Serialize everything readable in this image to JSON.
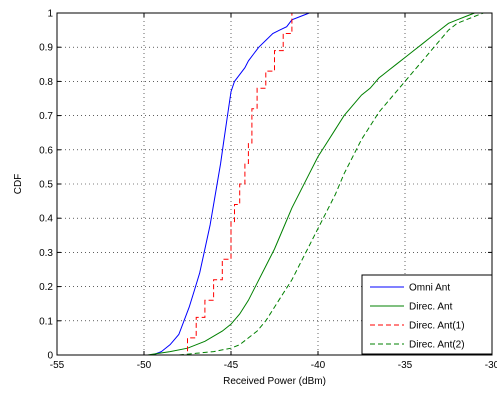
{
  "chart_data": {
    "type": "line",
    "title": "",
    "xlabel": "Received Power (dBm)",
    "ylabel": "CDF",
    "xlim": [
      -55,
      -30
    ],
    "ylim": [
      0,
      1
    ],
    "x_ticks": [
      -55,
      -50,
      -45,
      -40,
      -35,
      -30
    ],
    "y_ticks": [
      0,
      0.1,
      0.2,
      0.3,
      0.4,
      0.5,
      0.6,
      0.7,
      0.8,
      0.9,
      1
    ],
    "x_tick_labels": [
      "-55",
      "-50",
      "-45",
      "-40",
      "-35",
      "-30"
    ],
    "y_tick_labels": [
      "0",
      "0.1",
      "0.2",
      "0.3",
      "0.4",
      "0.5",
      "0.6",
      "0.7",
      "0.8",
      "0.9",
      "1"
    ],
    "grid": true,
    "legend_position": "bottom-right",
    "series": [
      {
        "name": "Omni Ant",
        "color": "#0000ff",
        "style": "solid",
        "x": [
          -49.5,
          -49.0,
          -48.5,
          -48.0,
          -47.7,
          -47.4,
          -47.1,
          -46.8,
          -46.5,
          -46.2,
          -46.0,
          -45.8,
          -45.6,
          -45.4,
          -45.2,
          -45.0,
          -44.8,
          -44.5,
          -44.2,
          -44.0,
          -43.7,
          -43.4,
          -43.0,
          -42.6,
          -42.2,
          -41.8,
          -41.5,
          -41.0,
          -40.5,
          -40.0
        ],
        "y": [
          0.0,
          0.01,
          0.03,
          0.06,
          0.1,
          0.14,
          0.19,
          0.24,
          0.31,
          0.38,
          0.44,
          0.5,
          0.56,
          0.63,
          0.7,
          0.77,
          0.8,
          0.82,
          0.84,
          0.86,
          0.88,
          0.9,
          0.92,
          0.94,
          0.95,
          0.96,
          0.98,
          0.99,
          1.0,
          1.0
        ]
      },
      {
        "name": "Direc. Ant",
        "color": "#008000",
        "style": "solid",
        "x": [
          -49.8,
          -48.5,
          -47.5,
          -46.5,
          -45.5,
          -45.0,
          -44.5,
          -44.0,
          -43.5,
          -43.0,
          -42.5,
          -42.0,
          -41.5,
          -41.0,
          -40.5,
          -40.0,
          -39.5,
          -39.0,
          -38.5,
          -38.0,
          -37.5,
          -37.0,
          -36.5,
          -36.0,
          -35.5,
          -35.0,
          -34.5,
          -34.0,
          -33.5,
          -33.0,
          -32.5,
          -32.0,
          -31.5,
          -31.0
        ],
        "y": [
          0.0,
          0.01,
          0.02,
          0.04,
          0.07,
          0.09,
          0.12,
          0.16,
          0.21,
          0.26,
          0.31,
          0.37,
          0.43,
          0.48,
          0.53,
          0.58,
          0.62,
          0.66,
          0.7,
          0.73,
          0.76,
          0.78,
          0.81,
          0.83,
          0.85,
          0.87,
          0.89,
          0.91,
          0.93,
          0.95,
          0.97,
          0.98,
          0.99,
          1.0
        ]
      },
      {
        "name": "Direc. Ant(1)",
        "color": "#ff0000",
        "style": "dashed",
        "x": [
          -48.2,
          -47.5,
          -47.5,
          -47.0,
          -47.0,
          -46.5,
          -46.5,
          -46.0,
          -46.0,
          -45.5,
          -45.5,
          -45.0,
          -45.0,
          -44.8,
          -44.8,
          -44.5,
          -44.5,
          -44.2,
          -44.2,
          -44.0,
          -44.0,
          -43.8,
          -43.8,
          -43.5,
          -43.5,
          -43.0,
          -43.0,
          -42.5,
          -42.5,
          -42.0,
          -42.0,
          -41.5,
          -41.5,
          -41.0
        ],
        "y": [
          0.0,
          0.0,
          0.05,
          0.05,
          0.11,
          0.11,
          0.16,
          0.16,
          0.22,
          0.22,
          0.28,
          0.28,
          0.39,
          0.39,
          0.44,
          0.44,
          0.5,
          0.5,
          0.56,
          0.56,
          0.62,
          0.62,
          0.72,
          0.72,
          0.78,
          0.78,
          0.83,
          0.83,
          0.89,
          0.89,
          0.94,
          0.94,
          1.0,
          1.0
        ]
      },
      {
        "name": "Direc. Ant(2)",
        "color": "#008000",
        "style": "dashed",
        "x": [
          -48.0,
          -47.0,
          -46.0,
          -45.0,
          -44.5,
          -44.0,
          -43.5,
          -43.0,
          -42.5,
          -42.0,
          -41.5,
          -41.0,
          -40.5,
          -40.0,
          -39.5,
          -39.0,
          -38.5,
          -38.0,
          -37.5,
          -37.0,
          -36.5,
          -36.0,
          -35.5,
          -35.0,
          -34.5,
          -34.0,
          -33.5,
          -33.0,
          -32.5,
          -32.0,
          -31.0,
          -30.5
        ],
        "y": [
          0.0,
          0.005,
          0.01,
          0.02,
          0.03,
          0.05,
          0.07,
          0.1,
          0.14,
          0.18,
          0.22,
          0.27,
          0.32,
          0.37,
          0.42,
          0.47,
          0.53,
          0.58,
          0.63,
          0.67,
          0.71,
          0.74,
          0.77,
          0.8,
          0.83,
          0.86,
          0.89,
          0.92,
          0.95,
          0.97,
          0.99,
          1.0
        ]
      }
    ]
  }
}
